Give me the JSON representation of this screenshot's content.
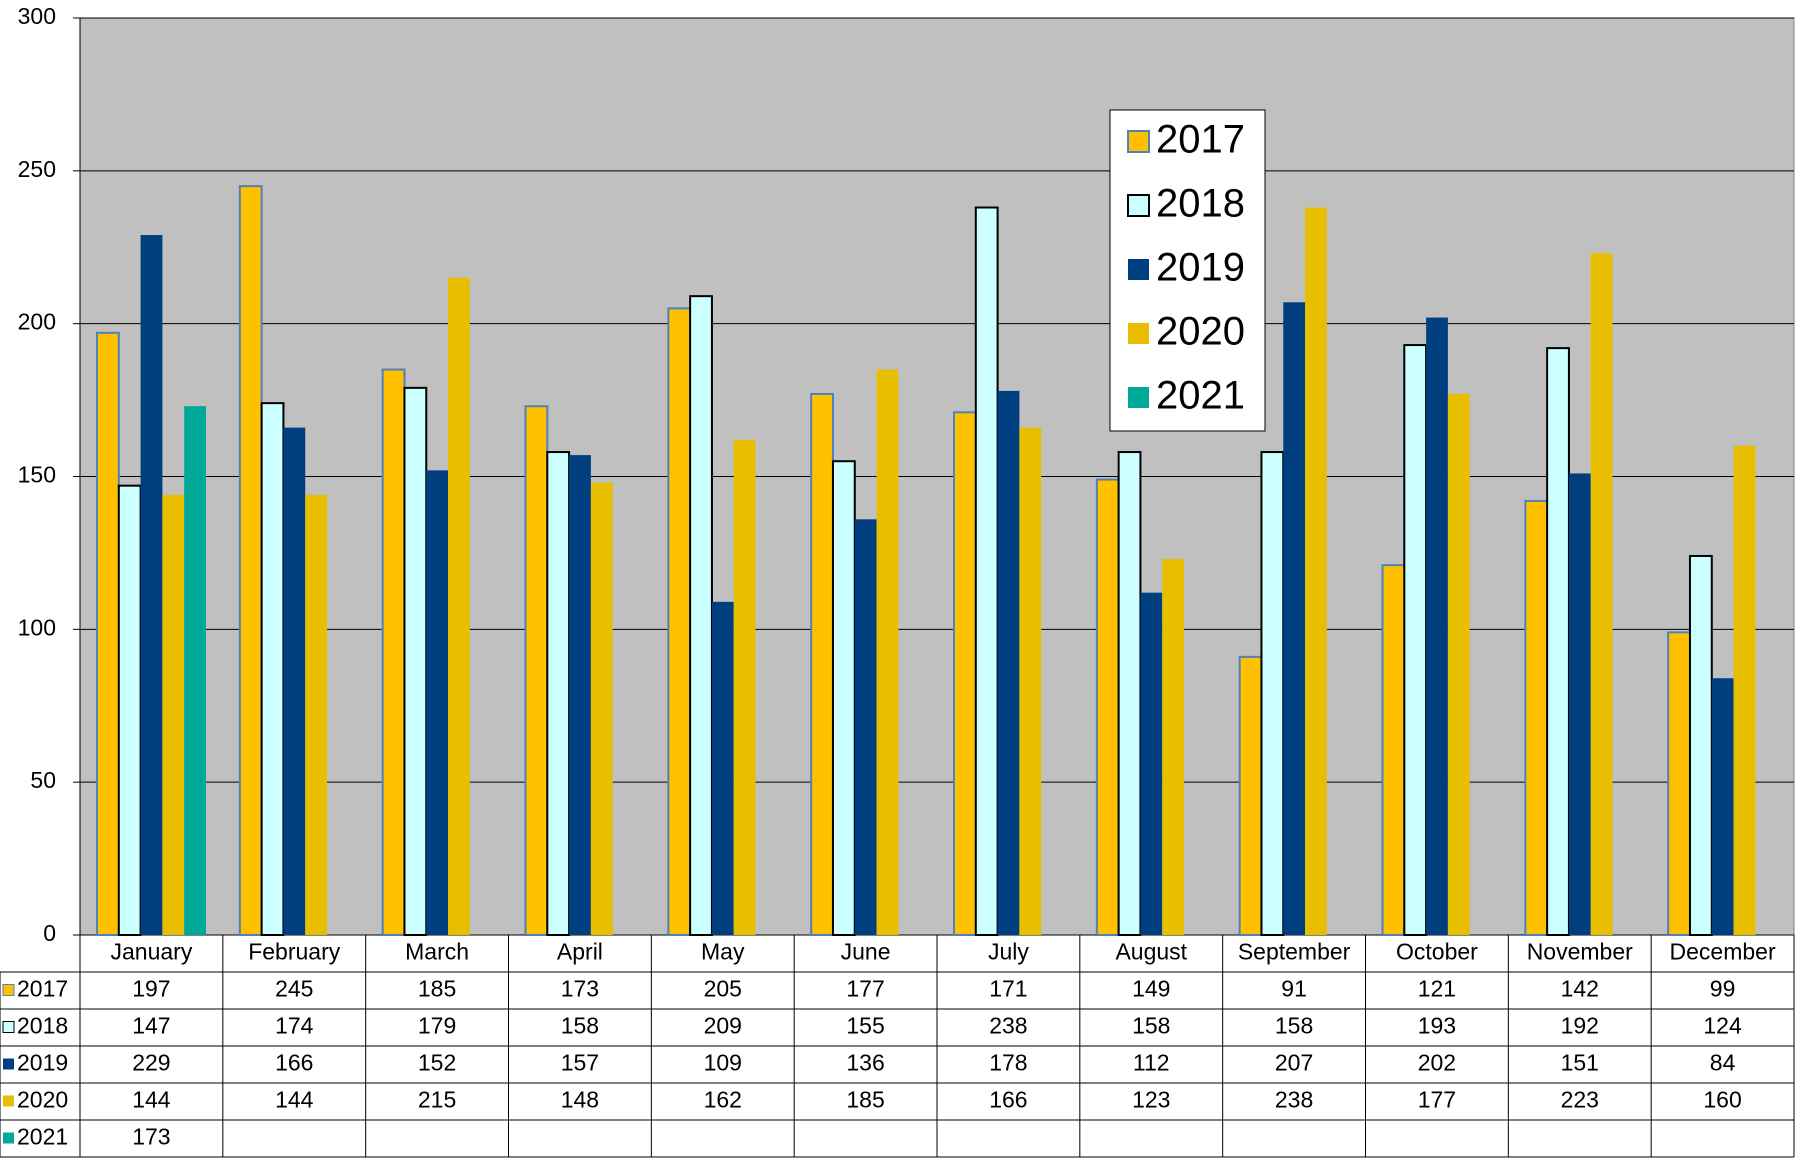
{
  "chart_data": {
    "type": "bar",
    "categories": [
      "January",
      "February",
      "March",
      "April",
      "May",
      "June",
      "July",
      "August",
      "September",
      "October",
      "November",
      "December"
    ],
    "series": [
      {
        "name": "2017",
        "color": "#FFC000",
        "values": [
          197,
          245,
          185,
          173,
          205,
          177,
          171,
          149,
          91,
          121,
          142,
          99
        ]
      },
      {
        "name": "2018",
        "color": "#CCFFFF",
        "values": [
          147,
          174,
          179,
          158,
          209,
          155,
          238,
          158,
          158,
          193,
          192,
          124
        ]
      },
      {
        "name": "2019",
        "color": "#003F7F",
        "values": [
          229,
          166,
          152,
          157,
          109,
          136,
          178,
          112,
          207,
          202,
          151,
          84
        ]
      },
      {
        "name": "2020",
        "color": "#E8BE00",
        "values": [
          144,
          144,
          215,
          148,
          162,
          185,
          166,
          123,
          238,
          177,
          223,
          160
        ]
      },
      {
        "name": "2021",
        "color": "#00A89A",
        "values": [
          173,
          null,
          null,
          null,
          null,
          null,
          null,
          null,
          null,
          null,
          null,
          null
        ]
      }
    ],
    "ylim": [
      0,
      300
    ],
    "yticks": [
      0,
      50,
      100,
      150,
      200,
      250,
      300
    ],
    "grid": true,
    "legend": "upper-right"
  }
}
